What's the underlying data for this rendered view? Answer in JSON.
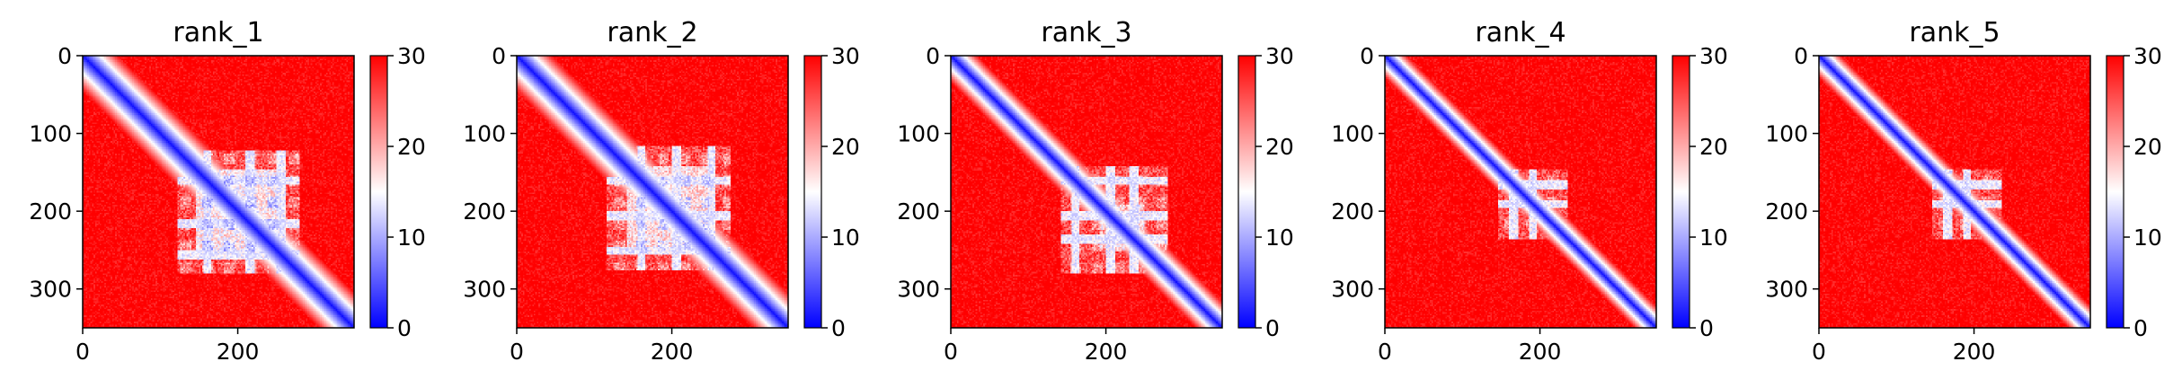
{
  "chart_data": [
    {
      "type": "heatmap",
      "title": "rank_1",
      "x_ticks": [
        0,
        200
      ],
      "y_ticks": [
        0,
        100,
        200,
        300
      ],
      "colorbar": {
        "ticks": [
          0,
          10,
          20,
          30
        ],
        "range": [
          0,
          30
        ],
        "colormap": "bwr"
      },
      "extent": [
        0,
        350
      ],
      "features": {
        "block": [
          120,
          280,
          120,
          280
        ],
        "inner": [
          145,
          255,
          145,
          255
        ],
        "depth": 0.8,
        "bands": [
          160,
          215,
          255
        ],
        "diag_width": 8
      }
    },
    {
      "type": "heatmap",
      "title": "rank_2",
      "x_ticks": [
        0,
        200
      ],
      "y_ticks": [
        0,
        100,
        200,
        300
      ],
      "colorbar": {
        "ticks": [
          0,
          10,
          20,
          30
        ],
        "range": [
          0,
          30
        ],
        "colormap": "bwr"
      },
      "extent": [
        0,
        350
      ],
      "features": {
        "block": [
          115,
          275,
          115,
          275
        ],
        "inner": [
          140,
          250,
          140,
          250
        ],
        "depth": 0.7,
        "bands": [
          160,
          205,
          250
        ],
        "diag_width": 8
      }
    },
    {
      "type": "heatmap",
      "title": "rank_3",
      "x_ticks": [
        0,
        200
      ],
      "y_ticks": [
        0,
        100,
        200,
        300
      ],
      "colorbar": {
        "ticks": [
          0,
          10,
          20,
          30
        ],
        "range": [
          0,
          30
        ],
        "colormap": "bwr"
      },
      "extent": [
        0,
        350
      ],
      "features": {
        "block": [
          140,
          280,
          140,
          280
        ],
        "inner": [
          190,
          250,
          190,
          250
        ],
        "depth": 0.45,
        "bands": [
          160,
          205,
          235
        ],
        "diag_width": 6
      }
    },
    {
      "type": "heatmap",
      "title": "rank_4",
      "x_ticks": [
        0,
        200
      ],
      "y_ticks": [
        0,
        100,
        200,
        300
      ],
      "colorbar": {
        "ticks": [
          0,
          10,
          20,
          30
        ],
        "range": [
          0,
          30
        ],
        "colormap": "bwr"
      },
      "extent": [
        0,
        350
      ],
      "features": {
        "block": [
          145,
          235,
          145,
          235
        ],
        "inner": [
          155,
          175,
          155,
          175
        ],
        "depth": 0.35,
        "bands": [
          165,
          190
        ],
        "diag_width": 5
      }
    },
    {
      "type": "heatmap",
      "title": "rank_5",
      "x_ticks": [
        0,
        200
      ],
      "y_ticks": [
        0,
        100,
        200,
        300
      ],
      "colorbar": {
        "ticks": [
          0,
          10,
          20,
          30
        ],
        "range": [
          0,
          30
        ],
        "colormap": "bwr"
      },
      "extent": [
        0,
        350
      ],
      "features": {
        "block": [
          145,
          235,
          145,
          235
        ],
        "inner": [
          155,
          175,
          155,
          175
        ],
        "depth": 0.3,
        "bands": [
          165,
          190
        ],
        "diag_width": 5
      }
    }
  ]
}
